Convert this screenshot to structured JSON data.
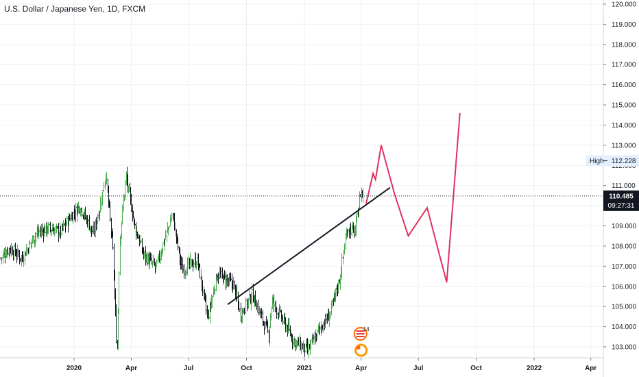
{
  "header": {
    "title": "U.S. Dollar / Japanese Yen, 1D, FXCM"
  },
  "colors": {
    "grid": "#eef0f3",
    "up": "#4caf50",
    "down": "#131722",
    "trendline": "#131722",
    "projection": "#e0305f",
    "price_tag_bg": "#131722",
    "high_tag_bg": "#e3effd",
    "axis_line": "#d1d4dc"
  },
  "price_tag": {
    "price": "110.485",
    "countdown": "09:27:31"
  },
  "high_tag": {
    "label": "High",
    "value": "112.228"
  },
  "event_badges": [
    {
      "text": "14"
    }
  ],
  "chart_data": {
    "type": "candlestick",
    "title": "U.S. Dollar / Japanese Yen, 1D, FXCM",
    "ylim": [
      102.6,
      120.2
    ],
    "y_ticks": [
      "120.000",
      "119.000",
      "118.000",
      "117.000",
      "116.000",
      "115.000",
      "114.000",
      "113.000",
      "112.000",
      "111.000",
      "110.000",
      "109.000",
      "108.000",
      "107.000",
      "106.000",
      "105.000",
      "104.000",
      "103.000"
    ],
    "x_ticks": [
      "2020",
      "Apr",
      "Jul",
      "Oct",
      "2021",
      "Apr",
      "Jul",
      "Oct",
      "2022",
      "Apr"
    ],
    "price_anchors": [
      [
        "2019-09-01",
        107.2
      ],
      [
        "2019-09-20",
        107.9
      ],
      [
        "2019-10-10",
        107.4
      ],
      [
        "2019-11-01",
        108.6
      ],
      [
        "2019-11-20",
        108.9
      ],
      [
        "2019-12-10",
        108.7
      ],
      [
        "2019-12-25",
        109.4
      ],
      [
        "2020-01-10",
        110.0
      ],
      [
        "2020-01-31",
        108.6
      ],
      [
        "2020-02-10",
        109.8
      ],
      [
        "2020-02-20",
        111.6
      ],
      [
        "2020-03-02",
        107.9
      ],
      [
        "2020-03-09",
        102.6
      ],
      [
        "2020-03-13",
        108.2
      ],
      [
        "2020-03-23",
        111.5
      ],
      [
        "2020-04-06",
        109.0
      ],
      [
        "2020-04-20",
        107.6
      ],
      [
        "2020-05-10",
        106.9
      ],
      [
        "2020-06-05",
        109.6
      ],
      [
        "2020-06-20",
        106.8
      ],
      [
        "2020-07-15",
        107.3
      ],
      [
        "2020-07-31",
        104.4
      ],
      [
        "2020-08-15",
        106.6
      ],
      [
        "2020-09-10",
        106.1
      ],
      [
        "2020-09-21",
        104.6
      ],
      [
        "2020-10-10",
        105.6
      ],
      [
        "2020-11-05",
        103.6
      ],
      [
        "2020-11-10",
        105.3
      ],
      [
        "2020-12-15",
        103.3
      ],
      [
        "2021-01-06",
        102.8
      ],
      [
        "2021-01-25",
        103.9
      ],
      [
        "2021-02-10",
        104.6
      ],
      [
        "2021-02-25",
        106.3
      ],
      [
        "2021-03-10",
        108.9
      ],
      [
        "2021-03-22",
        108.7
      ],
      [
        "2021-03-31",
        110.7
      ],
      [
        "2021-04-05",
        110.5
      ]
    ],
    "trendline": [
      [
        "2020-09-01",
        105.1
      ],
      [
        "2021-05-17",
        110.9
      ]
    ],
    "projection": [
      [
        "2021-04-09",
        110.1
      ],
      [
        "2021-04-20",
        111.6
      ],
      [
        "2021-04-24",
        111.3
      ],
      [
        "2021-05-03",
        113.0
      ],
      [
        "2021-05-24",
        110.6
      ],
      [
        "2021-06-15",
        108.5
      ],
      [
        "2021-07-15",
        109.9
      ],
      [
        "2021-08-15",
        106.2
      ],
      [
        "2021-09-05",
        114.6
      ]
    ],
    "last_price": 110.485,
    "high": 112.228
  }
}
